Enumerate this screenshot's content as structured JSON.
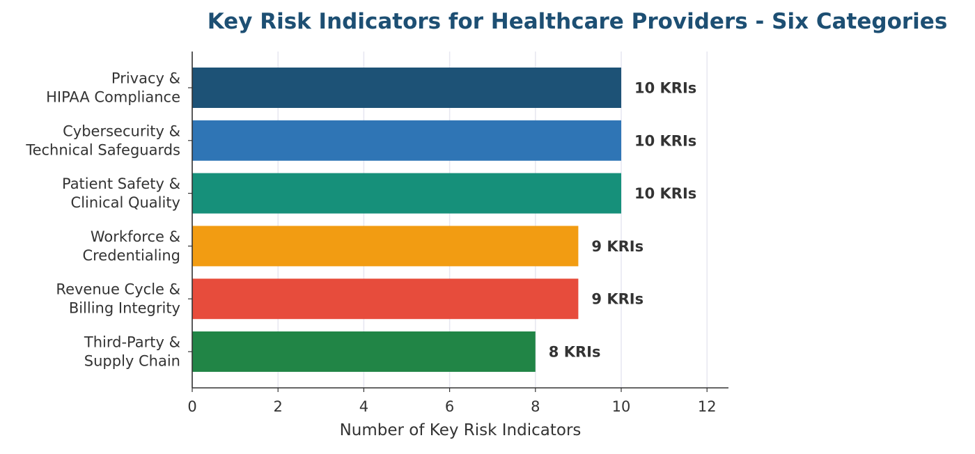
{
  "chart_data": {
    "type": "bar",
    "orientation": "horizontal",
    "title": "Key Risk Indicators for Healthcare Providers - Six Categories",
    "xlabel": "Number of Key Risk Indicators",
    "ylabel": "",
    "xlim": [
      0,
      12.5
    ],
    "xticks": [
      0,
      2,
      4,
      6,
      8,
      10,
      12
    ],
    "grid": "vertical",
    "categories": [
      [
        "Privacy &",
        "HIPAA Compliance"
      ],
      [
        "Cybersecurity &",
        "Technical Safeguards"
      ],
      [
        "Patient Safety &",
        "Clinical Quality"
      ],
      [
        "Workforce &",
        "Credentialing"
      ],
      [
        "Revenue Cycle &",
        "Billing Integrity"
      ],
      [
        "Third-Party &",
        "Supply Chain"
      ]
    ],
    "values": [
      10,
      10,
      10,
      9,
      9,
      8
    ],
    "data_labels": [
      "10 KRIs",
      "10 KRIs",
      "10 KRIs",
      "9 KRIs",
      "9 KRIs",
      "8 KRIs"
    ],
    "colors": [
      "#1d5276",
      "#2f75b5",
      "#16907a",
      "#f29c12",
      "#e74c3c",
      "#218546"
    ]
  }
}
